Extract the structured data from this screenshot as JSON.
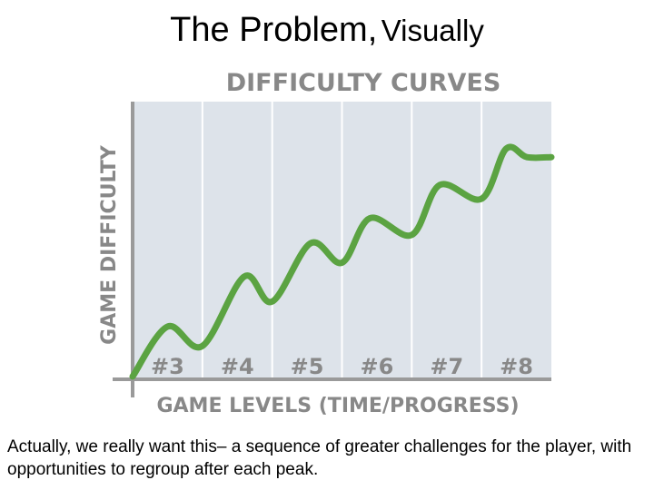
{
  "slide": {
    "title_main": "The Problem,",
    "title_sub": "Visually",
    "caption": "Actually, we really want this– a sequence of greater challenges for the player, with opportunities to regroup after each peak."
  },
  "chart_data": {
    "type": "line",
    "title": "DIFFICULTY CURVES",
    "xlabel": "GAME LEVELS (TIME/PROGRESS)",
    "ylabel": "GAME DIFFICULTY",
    "categories": [
      "#3",
      "#4",
      "#5",
      "#6",
      "#7",
      "#8"
    ],
    "grid": true,
    "xlim": [
      0,
      6
    ],
    "ylim": [
      0,
      10
    ],
    "series": [
      {
        "color": "#5ba342",
        "x": [
          0,
          0.5,
          1.0,
          1.6,
          2.0,
          2.55,
          3.0,
          3.4,
          4.0,
          4.4,
          5.0,
          5.35,
          5.65,
          6.0
        ],
        "y": [
          0.1,
          1.9,
          1.2,
          3.7,
          2.8,
          4.9,
          4.2,
          5.8,
          5.2,
          7.0,
          6.5,
          8.3,
          8.0,
          8.0
        ]
      }
    ],
    "colors": {
      "plot_bg": "#dde3ea",
      "grid": "#ffffff",
      "axis": "#9a9a9a",
      "text": "#888888"
    }
  }
}
